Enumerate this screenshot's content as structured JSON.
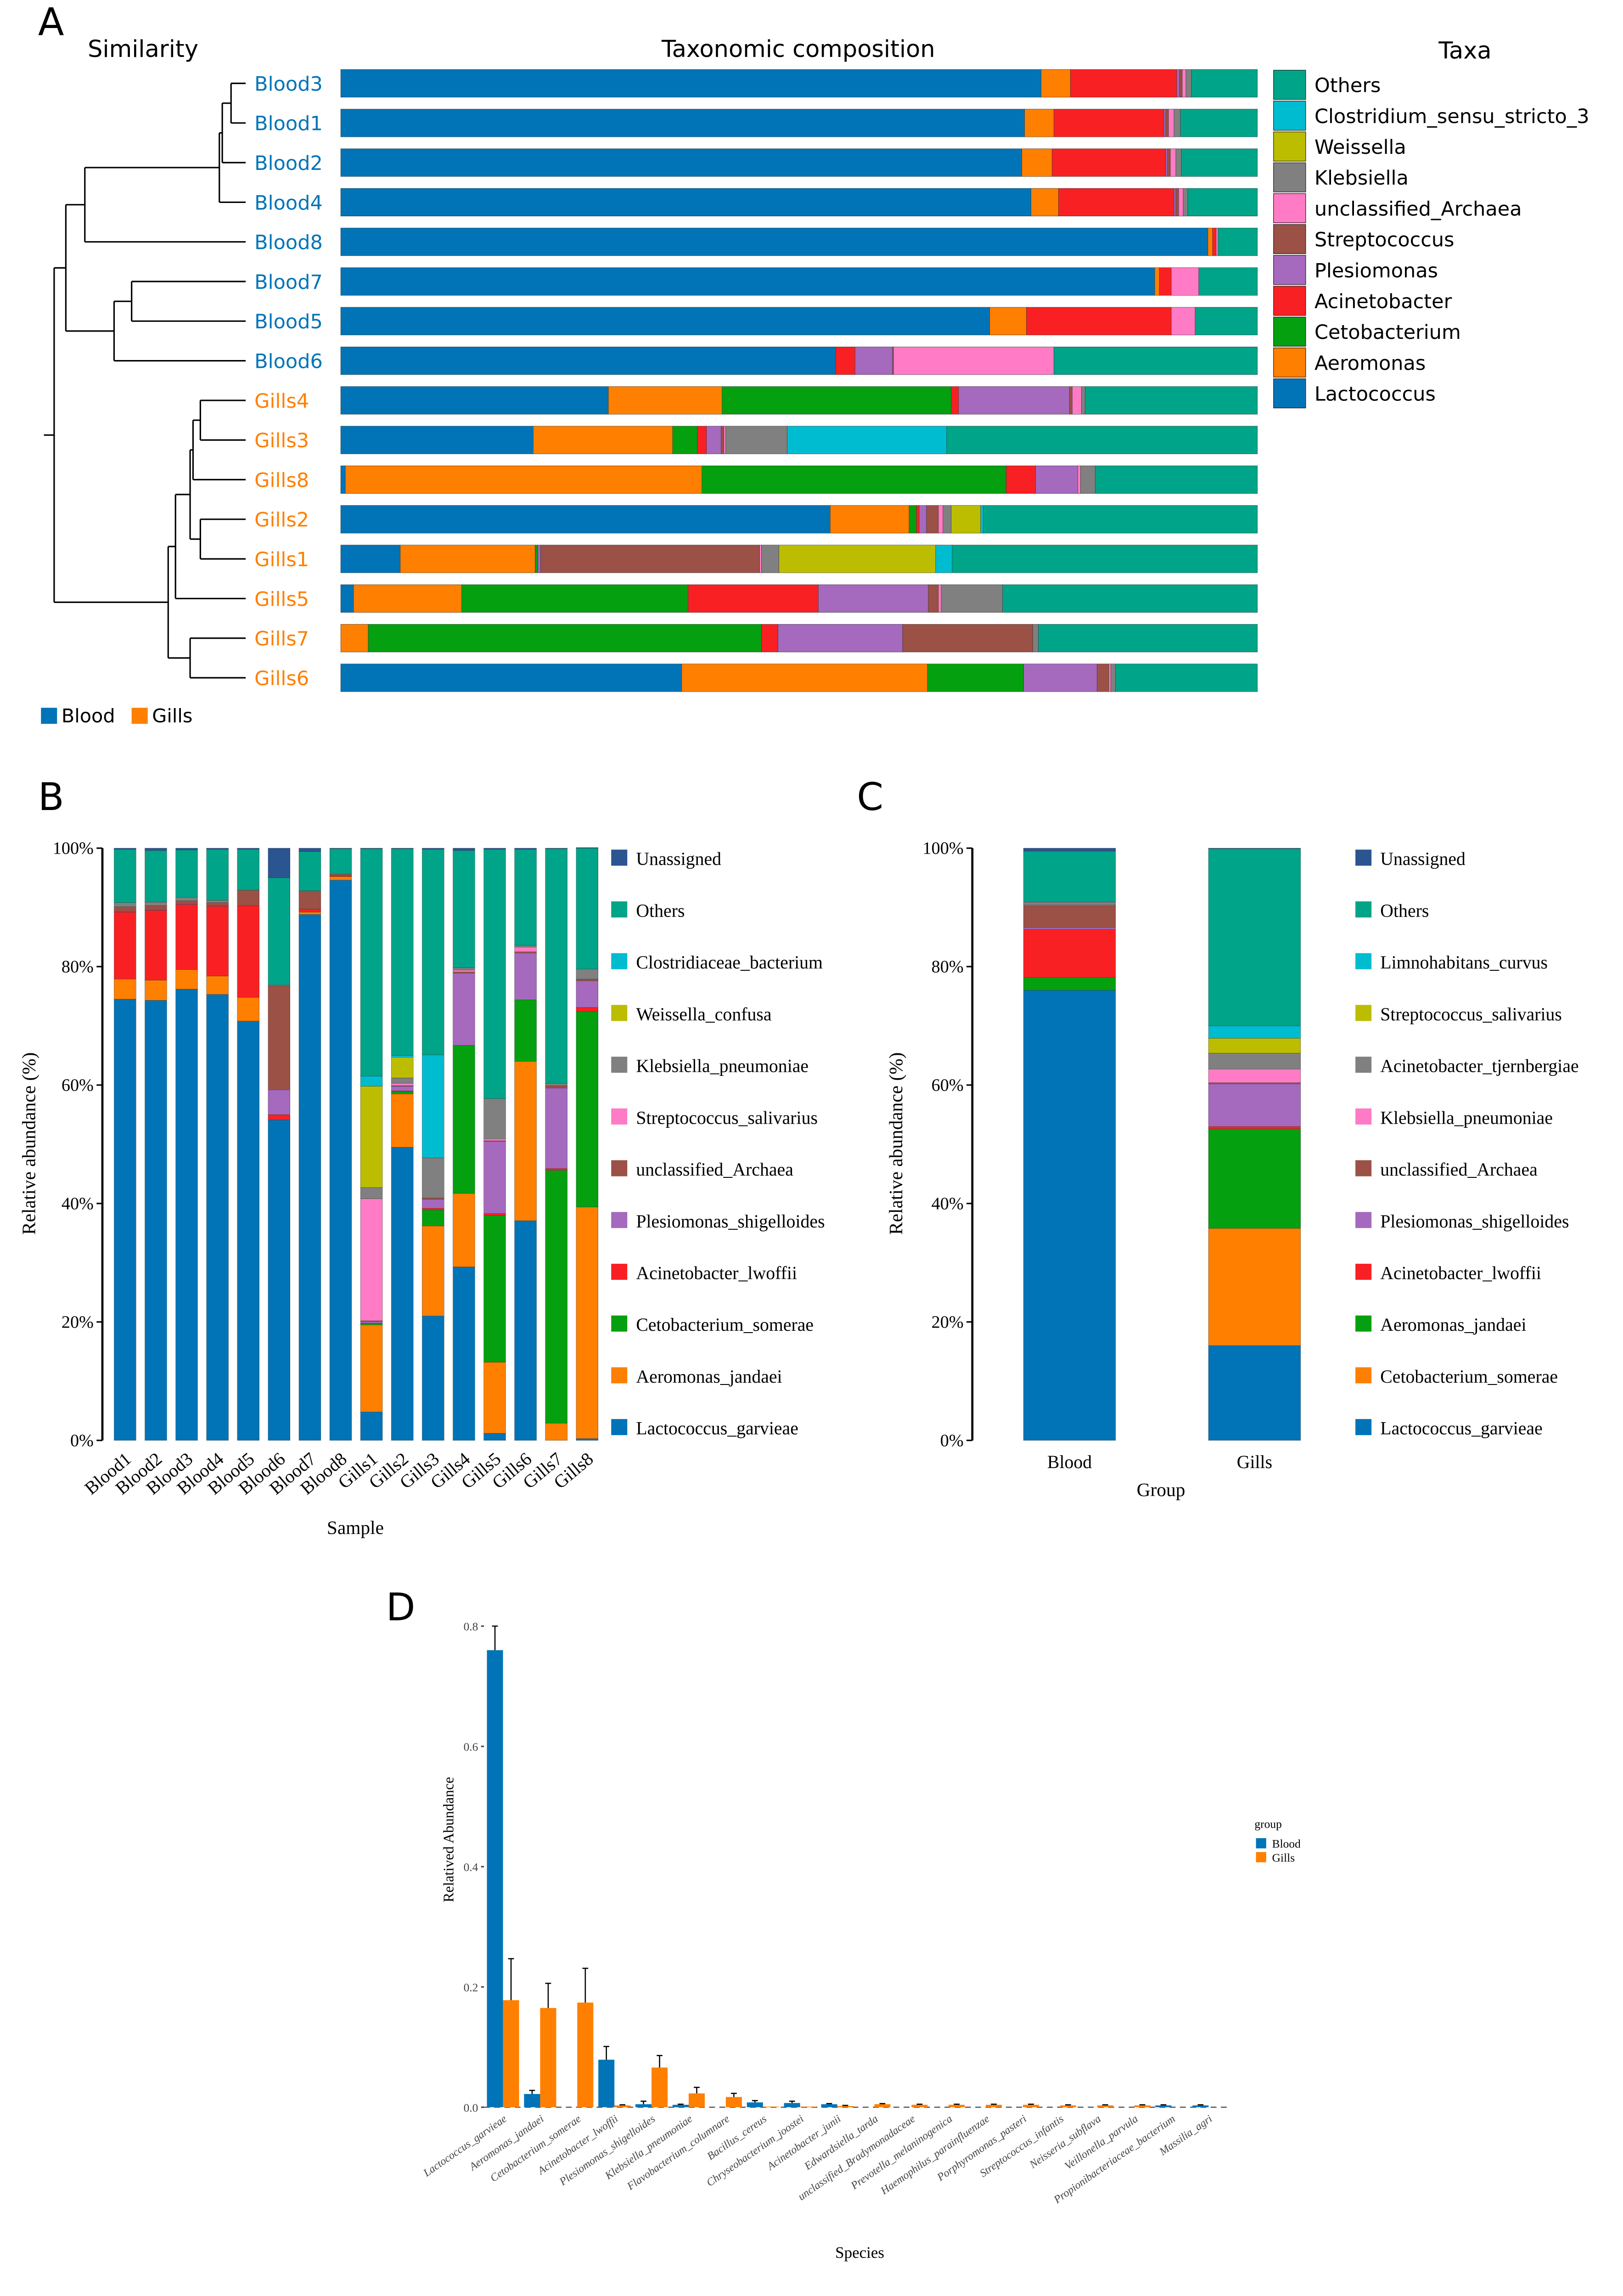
{
  "colors": {
    "blue": "#0174B7",
    "orange": "#FF7F00",
    "green": "#05A00F",
    "red": "#F92023",
    "purple": "#A569BD",
    "brown": "#9B5145",
    "pink": "#FF7BC5",
    "gray": "#808080",
    "olive": "#BCBD00",
    "cyan": "#00BCD0",
    "teal": "#00A488",
    "navy": "#2B5591"
  },
  "panel_a": {
    "label": "A",
    "similarity_title": "Similarity",
    "composition_title": "Taxonomic composition",
    "taxa_title": "Taxa",
    "taxa": [
      "Lactococcus",
      "Aeromonas",
      "Cetobacterium",
      "Acinetobacter",
      "Plesiomonas",
      "Streptococcus",
      "unclassified_Archaea",
      "Klebsiella",
      "Weissella",
      "Clostridium_sensu_stricto_3",
      "Others"
    ],
    "taxa_colors": [
      "#0174B7",
      "#FF7F00",
      "#05A00F",
      "#F92023",
      "#A569BD",
      "#9B5145",
      "#FF7BC5",
      "#808080",
      "#BCBD00",
      "#00BCD0",
      "#00A488"
    ],
    "groups": [
      {
        "name": "Blood",
        "color": "#0174B7"
      },
      {
        "name": "Gills",
        "color": "#FF7F00"
      }
    ],
    "samples": [
      {
        "name": "Blood3",
        "group": "Blood",
        "values": [
          76.4,
          3.2,
          0,
          11.6,
          0.3,
          0.3,
          0.4,
          0.6,
          0,
          0,
          7.2
        ]
      },
      {
        "name": "Blood1",
        "group": "Blood",
        "values": [
          74.6,
          3.2,
          0,
          12.0,
          0.2,
          0.3,
          0.6,
          0.7,
          0,
          0,
          8.4
        ]
      },
      {
        "name": "Blood2",
        "group": "Blood",
        "values": [
          74.3,
          3.3,
          0,
          12.4,
          0.2,
          0.3,
          0.6,
          0.6,
          0,
          0,
          8.3
        ]
      },
      {
        "name": "Blood4",
        "group": "Blood",
        "values": [
          75.3,
          3.0,
          0,
          12.6,
          0.2,
          0.3,
          0.5,
          0.5,
          0,
          0,
          7.6
        ]
      },
      {
        "name": "Blood8",
        "group": "Blood",
        "values": [
          94.6,
          0.5,
          0,
          0.4,
          0,
          0,
          0.2,
          0,
          0,
          0,
          4.3
        ]
      },
      {
        "name": "Blood7",
        "group": "Blood",
        "values": [
          88.8,
          0.5,
          0,
          1.3,
          0,
          0,
          3.0,
          0,
          0,
          0,
          6.4
        ]
      },
      {
        "name": "Blood5",
        "group": "Blood",
        "values": [
          70.8,
          4.0,
          0,
          15.8,
          0,
          0,
          2.6,
          0,
          0,
          0,
          6.8
        ]
      },
      {
        "name": "Blood6",
        "group": "Blood",
        "values": [
          54.0,
          0,
          0,
          2.1,
          4.1,
          0.1,
          17.5,
          0,
          0,
          0,
          22.2
        ]
      },
      {
        "name": "Gills4",
        "group": "Gills",
        "values": [
          29.2,
          12.4,
          25.0,
          0.8,
          12.1,
          0.3,
          1.0,
          0.4,
          0,
          0,
          18.8
        ]
      },
      {
        "name": "Gills3",
        "group": "Gills",
        "values": [
          21.0,
          15.2,
          2.7,
          1.0,
          1.6,
          0.3,
          0.2,
          6.7,
          0,
          17.4,
          33.9
        ]
      },
      {
        "name": "Gills8",
        "group": "Gills",
        "values": [
          0.5,
          38.9,
          33.2,
          3.2,
          4.6,
          0,
          0.3,
          1.6,
          0,
          0,
          17.7
        ]
      },
      {
        "name": "Gills2",
        "group": "Gills",
        "values": [
          53.4,
          8.6,
          0.8,
          0.3,
          0.8,
          1.3,
          0.5,
          0.9,
          3.2,
          0.3,
          29.9
        ]
      },
      {
        "name": "Gills1",
        "group": "Gills",
        "values": [
          6.5,
          14.7,
          0.3,
          0,
          0.3,
          23.9,
          0.2,
          1.9,
          17.1,
          1.8,
          33.3
        ]
      },
      {
        "name": "Gills5",
        "group": "Gills",
        "values": [
          1.4,
          11.8,
          24.7,
          14.2,
          12.0,
          1.1,
          0.3,
          6.7,
          0,
          0,
          27.8
        ]
      },
      {
        "name": "Gills7",
        "group": "Gills",
        "values": [
          0,
          3.0,
          42.9,
          1.8,
          13.6,
          14.2,
          0,
          0.6,
          0,
          0,
          23.9
        ]
      },
      {
        "name": "Gills6",
        "group": "Gills",
        "values": [
          37.2,
          26.8,
          10.5,
          0,
          8.0,
          1.3,
          0.2,
          0.5,
          0,
          0,
          15.5
        ]
      }
    ]
  },
  "chart_data": [
    {
      "panel": "B",
      "type": "bar",
      "stacked": true,
      "xlabel": "Sample",
      "ylabel": "Relative abundance (%)",
      "ylim": [
        0,
        100
      ],
      "yticks": [
        "0%",
        "20%",
        "40%",
        "60%",
        "80%",
        "100%"
      ],
      "legend_position": "right",
      "categories": [
        "Blood1",
        "Blood2",
        "Blood3",
        "Blood4",
        "Blood5",
        "Blood6",
        "Blood7",
        "Blood8",
        "Gills1",
        "Gills2",
        "Gills3",
        "Gills4",
        "Gills5",
        "Gills6",
        "Gills7",
        "Gills8"
      ],
      "series": [
        {
          "name": "Lactococcus_garvieae",
          "color": "#0174B7",
          "values": [
            74.5,
            74.3,
            76.2,
            75.3,
            70.8,
            54.1,
            88.8,
            94.6,
            4.8,
            49.5,
            21.0,
            29.3,
            1.2,
            37.1,
            0,
            0.3
          ]
        },
        {
          "name": "Aeromonas_jandaei",
          "color": "#FF7F00",
          "values": [
            3.4,
            3.4,
            3.3,
            3.1,
            4.0,
            0,
            0.4,
            0.6,
            14.7,
            9.0,
            15.2,
            12.4,
            12.0,
            26.9,
            2.9,
            39.1
          ]
        },
        {
          "name": "Cetobacterium_somerae",
          "color": "#05A00F",
          "values": [
            0,
            0,
            0,
            0,
            0,
            0,
            0,
            0,
            0.3,
            0.4,
            2.7,
            25.0,
            24.8,
            10.4,
            42.7,
            33.0
          ]
        },
        {
          "name": "Acinetobacter_lwoffii",
          "color": "#F92023",
          "values": [
            11.3,
            11.8,
            11.0,
            11.8,
            15.5,
            0.9,
            0.5,
            0.1,
            0,
            0.1,
            0.3,
            0,
            0.3,
            0,
            0.3,
            0.7
          ]
        },
        {
          "name": "Plesiomonas_shigelloides",
          "color": "#A569BD",
          "values": [
            0.1,
            0.1,
            0.1,
            0.1,
            0,
            4.2,
            0,
            0,
            0.3,
            0.8,
            1.5,
            12.2,
            12.2,
            7.9,
            13.6,
            4.5
          ]
        },
        {
          "name": "unclassified_Archaea",
          "color": "#9B5145",
          "values": [
            0.8,
            0.7,
            0.5,
            0.5,
            2.6,
            17.6,
            3.1,
            0.3,
            0.1,
            0.1,
            0.2,
            0.2,
            0.1,
            0.2,
            0.4,
            0.3
          ]
        },
        {
          "name": "Streptococcus_salivarius",
          "color": "#FF7BC5",
          "values": [
            0,
            0,
            0,
            0,
            0,
            0.1,
            0,
            0,
            20.6,
            0.4,
            0.1,
            0.3,
            0.3,
            0.8,
            0,
            0
          ]
        },
        {
          "name": "Klebsiella_pneumoniae",
          "color": "#808080",
          "values": [
            0.7,
            0.6,
            0.6,
            0.4,
            0,
            0,
            0,
            0,
            1.9,
            0.9,
            6.7,
            0.4,
            6.8,
            0.3,
            0.4,
            1.7
          ]
        },
        {
          "name": "Weissella_confusa",
          "color": "#BCBD00",
          "values": [
            0,
            0,
            0,
            0,
            0,
            0,
            0,
            0,
            17.1,
            3.5,
            0,
            0,
            0,
            0,
            0,
            0
          ]
        },
        {
          "name": "Clostridiaceae_bacterium",
          "color": "#00BCD0",
          "values": [
            0,
            0,
            0,
            0,
            0,
            0,
            0,
            0,
            1.7,
            0.3,
            17.4,
            0,
            0,
            0,
            0,
            0
          ]
        },
        {
          "name": "Others",
          "color": "#00A488",
          "values": [
            9.0,
            8.7,
            8.0,
            8.6,
            6.9,
            18.1,
            6.6,
            4.3,
            38.4,
            34.9,
            34.7,
            19.8,
            42.1,
            16.2,
            39.6,
            20.4
          ]
        },
        {
          "name": "Unassigned",
          "color": "#2B5591",
          "values": [
            0.2,
            0.4,
            0.3,
            0.2,
            0.2,
            5.0,
            0.6,
            0.1,
            0.1,
            0.1,
            0.2,
            0.4,
            0.2,
            0.2,
            0.1,
            0.1
          ]
        }
      ]
    },
    {
      "panel": "C",
      "type": "bar",
      "stacked": true,
      "xlabel": "Group",
      "ylabel": "Relative abundance (%)",
      "ylim": [
        0,
        100
      ],
      "yticks": [
        "0%",
        "20%",
        "40%",
        "60%",
        "80%",
        "100%"
      ],
      "legend_position": "right",
      "categories": [
        "Blood",
        "Gills"
      ],
      "series": [
        {
          "name": "Lactococcus_garvieae",
          "color": "#0174B7",
          "values": [
            76.0,
            16.0
          ]
        },
        {
          "name": "Cetobacterium_somerae",
          "color": "#FF7F00",
          "values": [
            0,
            19.8
          ]
        },
        {
          "name": "Aeromonas_jandaei",
          "color": "#05A00F",
          "values": [
            2.2,
            16.8
          ]
        },
        {
          "name": "Acinetobacter_lwoffii",
          "color": "#F92023",
          "values": [
            8.1,
            0.4
          ]
        },
        {
          "name": "Plesiomonas_shigelloides",
          "color": "#A569BD",
          "values": [
            0.3,
            7.2
          ]
        },
        {
          "name": "unclassified_Archaea",
          "color": "#9B5145",
          "values": [
            3.7,
            0.2
          ]
        },
        {
          "name": "Klebsiella_pneumoniae",
          "color": "#FF7BC5",
          "values": [
            0.1,
            2.3
          ]
        },
        {
          "name": "Acinetobacter_tjernbergiae",
          "color": "#808080",
          "values": [
            0.5,
            2.7
          ]
        },
        {
          "name": "Streptococcus_salivarius",
          "color": "#BCBD00",
          "values": [
            0,
            2.5
          ]
        },
        {
          "name": "Limnohabitans_curvus",
          "color": "#00BCD0",
          "values": [
            0,
            2.1
          ]
        },
        {
          "name": "Others",
          "color": "#00A488",
          "values": [
            8.6,
            29.9
          ]
        },
        {
          "name": "Unassigned",
          "color": "#2B5591",
          "values": [
            0.5,
            0.1
          ]
        }
      ]
    },
    {
      "panel": "D",
      "type": "bar",
      "grouped": true,
      "xlabel": "Species",
      "ylabel": "Relatived Abundance",
      "ylim": [
        0,
        0.8
      ],
      "yticks": [
        "0.0",
        "0.2",
        "0.4",
        "0.6",
        "0.8"
      ],
      "legend_title": "group",
      "legend_position": "right",
      "categories": [
        "Lactococcus_garvieae",
        "Aeromonas_jandaei",
        "Cetobacterium_somerae",
        "Acinetobacter_lwoffii",
        "Plesiomonas_shigelloides",
        "Klebsiella_pneumoniae",
        "Flavobacterium_columnare",
        "Bacillus_cereus",
        "Chryseobacterium_joostei",
        "Acinetobacter_junii",
        "Edwardsiella_tarda",
        "unclassified_Bradymonadaceae",
        "Prevotella_melaninogenica",
        "Haemophilus_parainfluenzae",
        "Porphyromonas_pasteri",
        "Streptococcus_infantis",
        "Neisseria_subflava",
        "Veillonella_parvula",
        "Propionibacteriaceae_bacterium",
        "Massilia_agri"
      ],
      "series": [
        {
          "name": "Blood",
          "color": "#0174B7",
          "values": [
            0.76,
            0.022,
            0,
            0.079,
            0.005,
            0.004,
            0,
            0.008,
            0.007,
            0.005,
            0,
            0,
            0,
            0,
            0,
            0,
            0,
            0,
            0.003,
            0.003
          ],
          "error_upper": [
            0.8,
            0.028,
            0,
            0.101,
            0.01,
            0.005,
            0,
            0.011,
            0.01,
            0.006,
            0,
            0,
            0,
            0,
            0,
            0,
            0,
            0,
            0.004,
            0.004
          ]
        },
        {
          "name": "Gills",
          "color": "#FF7F00",
          "values": [
            0.178,
            0.165,
            0.174,
            0.003,
            0.066,
            0.023,
            0.017,
            0.001,
            0.001,
            0.002,
            0.005,
            0.004,
            0.004,
            0.004,
            0.004,
            0.003,
            0.003,
            0.003,
            0,
            0
          ],
          "error_upper": [
            0.247,
            0.206,
            0.231,
            0.004,
            0.086,
            0.033,
            0.023,
            0.001,
            0.001,
            0.003,
            0.006,
            0.005,
            0.005,
            0.005,
            0.005,
            0.004,
            0.004,
            0.004,
            0,
            0
          ]
        }
      ]
    }
  ],
  "panel_labels": {
    "b": "B",
    "c": "C",
    "d": "D"
  }
}
